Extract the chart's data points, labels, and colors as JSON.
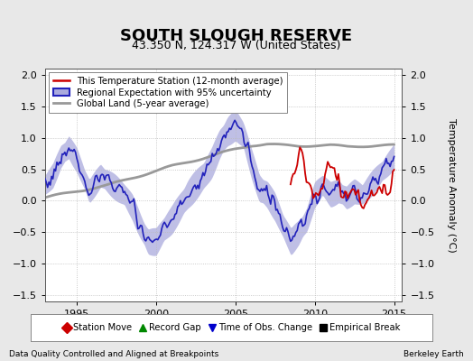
{
  "title": "SOUTH SLOUGH RESERVE",
  "subtitle": "43.350 N, 124.317 W (United States)",
  "ylabel": "Temperature Anomaly (°C)",
  "footer_left": "Data Quality Controlled and Aligned at Breakpoints",
  "footer_right": "Berkeley Earth",
  "xlim": [
    1993.0,
    2015.5
  ],
  "ylim": [
    -1.6,
    2.1
  ],
  "yticks": [
    -1.5,
    -1.0,
    -0.5,
    0.0,
    0.5,
    1.0,
    1.5,
    2.0
  ],
  "xticks": [
    1995,
    2000,
    2005,
    2010,
    2015
  ],
  "title_fontsize": 13,
  "subtitle_fontsize": 9,
  "label_fontsize": 8,
  "tick_fontsize": 8,
  "bg_color": "#e8e8e8",
  "plot_bg_color": "#ffffff",
  "regional_color": "#2222bb",
  "regional_fill_color": "#aaaadd",
  "station_color": "#cc0000",
  "global_color": "#999999",
  "legend1_labels": [
    "This Temperature Station (12-month average)",
    "Regional Expectation with 95% uncertainty",
    "Global Land (5-year average)"
  ],
  "legend2_labels": [
    "Station Move",
    "Record Gap",
    "Time of Obs. Change",
    "Empirical Break"
  ],
  "legend2_colors": [
    "#cc0000",
    "#008800",
    "#0000cc",
    "#000000"
  ],
  "legend2_markers": [
    "D",
    "^",
    "v",
    "s"
  ]
}
